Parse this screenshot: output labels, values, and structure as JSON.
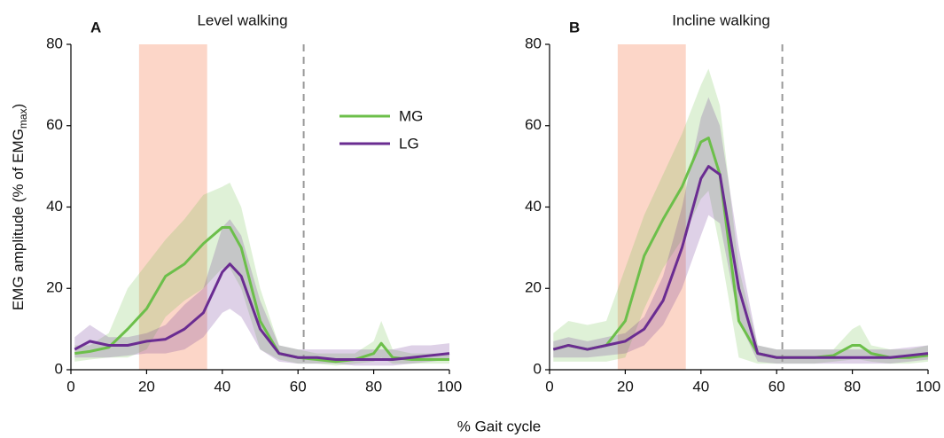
{
  "chart_data": [
    {
      "type": "line",
      "panel_label": "A",
      "title": "Level walking",
      "legend": true,
      "ylabel": {
        "text": "EMG amplitude (% of EMG",
        "sub": "max",
        "close": ")"
      },
      "xlabel": "% Gait cycle",
      "xlim": [
        0,
        100
      ],
      "ylim": [
        0,
        80
      ],
      "xticks": [
        0,
        20,
        40,
        60,
        80,
        100
      ],
      "yticks": [
        0,
        20,
        40,
        60,
        80
      ],
      "shaded_span": [
        18,
        36
      ],
      "shaded_color": "#fcd6c8",
      "vline": 61.5,
      "x": [
        1,
        5,
        10,
        15,
        20,
        25,
        30,
        35,
        40,
        42,
        45,
        50,
        55,
        60,
        65,
        70,
        75,
        80,
        82,
        85,
        90,
        95,
        100
      ],
      "series": [
        {
          "name": "MG",
          "color": "#6cbf4a",
          "values": [
            4,
            4.5,
            5.5,
            10,
            15,
            23,
            26,
            31,
            35,
            35,
            30,
            12,
            4,
            3,
            2.5,
            2,
            2.5,
            4,
            6.5,
            3,
            2.5,
            2.5,
            2.5
          ],
          "upper": [
            6,
            6,
            9,
            20,
            26,
            32,
            37,
            43,
            45,
            46,
            40,
            20,
            6,
            5,
            4,
            4,
            4,
            7,
            12,
            5,
            4,
            4,
            4
          ],
          "lower": [
            2,
            2.5,
            3,
            3,
            5,
            13,
            17,
            20,
            25,
            25,
            20,
            5,
            2.5,
            1.5,
            1.5,
            1,
            1.5,
            2,
            3,
            1.5,
            1.5,
            1.5,
            1.5
          ]
        },
        {
          "name": "LG",
          "color": "#6a2c91",
          "values": [
            5,
            7,
            6,
            6,
            7,
            7.5,
            10,
            14,
            24,
            26,
            23,
            10,
            4,
            3,
            3,
            2.5,
            2.5,
            2.5,
            2.5,
            2.5,
            3,
            3.5,
            4
          ],
          "upper": [
            8,
            11,
            8,
            8,
            9,
            11,
            16,
            20,
            35,
            37,
            33,
            17,
            6,
            5,
            5,
            5,
            5,
            5,
            5,
            5,
            6,
            6,
            6.5
          ],
          "lower": [
            3,
            3,
            3,
            3.5,
            4,
            4,
            5,
            8,
            14,
            15,
            13,
            5,
            2,
            1.5,
            1.5,
            1.5,
            1,
            1,
            1,
            1,
            1.5,
            2,
            2.5
          ]
        }
      ]
    },
    {
      "type": "line",
      "panel_label": "B",
      "title": "Incline walking",
      "legend": false,
      "xlim": [
        0,
        100
      ],
      "ylim": [
        0,
        80
      ],
      "xticks": [
        0,
        20,
        40,
        60,
        80,
        100
      ],
      "yticks": [
        0,
        20,
        40,
        60,
        80
      ],
      "shaded_span": [
        18,
        36
      ],
      "shaded_color": "#fcd6c8",
      "vline": 61.5,
      "x": [
        1,
        5,
        10,
        15,
        20,
        25,
        30,
        35,
        40,
        42,
        45,
        50,
        55,
        60,
        65,
        70,
        75,
        80,
        82,
        85,
        90,
        95,
        100
      ],
      "series": [
        {
          "name": "MG",
          "color": "#6cbf4a",
          "values": [
            5,
            6,
            5,
            6,
            12,
            28,
            37,
            45,
            56,
            57,
            48,
            12,
            4,
            3,
            3,
            3,
            3.5,
            6,
            6,
            4,
            3,
            3,
            3.5
          ],
          "upper": [
            9,
            12,
            11,
            12,
            25,
            38,
            48,
            58,
            70,
            74,
            65,
            25,
            6,
            5,
            5,
            5,
            5,
            10,
            11,
            6,
            5,
            5,
            6
          ],
          "lower": [
            2,
            2,
            2,
            2,
            3,
            15,
            25,
            32,
            42,
            44,
            30,
            3,
            1.5,
            1.5,
            1.5,
            1.5,
            2,
            2.5,
            2.5,
            2,
            1.5,
            1.5,
            2
          ]
        },
        {
          "name": "LG",
          "color": "#6a2c91",
          "values": [
            5,
            6,
            5,
            6,
            7,
            10,
            17,
            30,
            47,
            50,
            48,
            20,
            4,
            3,
            3,
            3,
            3,
            3,
            3,
            3,
            3,
            3.5,
            4
          ],
          "upper": [
            7,
            8,
            7,
            8,
            9,
            13,
            23,
            40,
            62,
            67,
            60,
            30,
            6,
            5,
            5,
            5,
            5,
            5,
            5,
            5,
            5,
            5.5,
            6
          ],
          "lower": [
            3,
            3,
            3,
            3.5,
            4,
            6,
            11,
            20,
            33,
            38,
            36,
            12,
            2,
            1.5,
            1.5,
            1.5,
            1.5,
            1.5,
            1.5,
            1.5,
            1.5,
            2,
            2.5
          ]
        }
      ]
    }
  ]
}
